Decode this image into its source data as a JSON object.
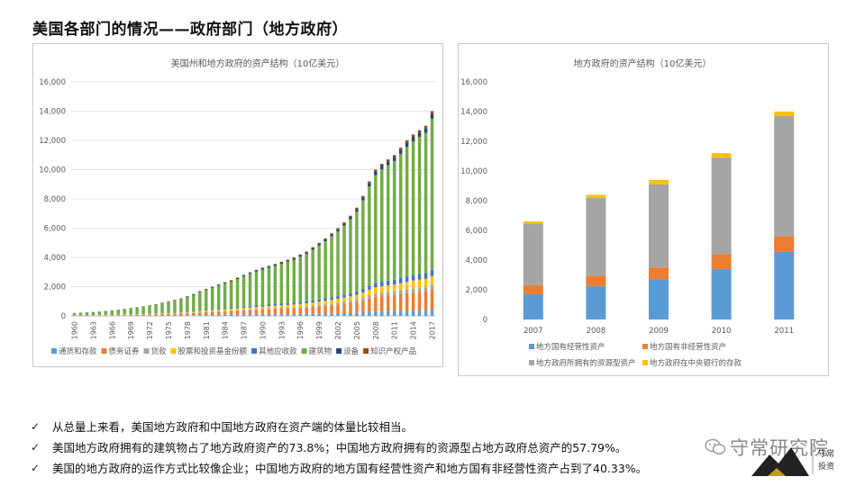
{
  "page": {
    "title": "美国各部门的情况——政府部门（地方政府）"
  },
  "bullets": [
    {
      "check": "✓",
      "text": "从总量上来看，美国地方政府和中国地方政府在资产端的体量比较相当。"
    },
    {
      "check": "✓",
      "text": "美国地方政府拥有的建筑物占了地方政府资产的73.8%；中国地方政府拥有的资源型占地方政府总资产的57.79%。"
    },
    {
      "check": "✓",
      "text": "美国的地方政府的运作方式比较像企业；中国地方政府的地方国有经营性资产和地方国有非经营性资产占到了40.33%。"
    }
  ],
  "watermark": {
    "text": "守常研究院",
    "logo_text": "守常投资"
  },
  "chart_data": [
    {
      "type": "bar",
      "stacked": true,
      "title": "美国州和地方政府的资产结构（10亿美元）",
      "ylim": [
        0,
        16000
      ],
      "yticks": [
        0,
        2000,
        4000,
        6000,
        8000,
        10000,
        12000,
        14000,
        16000
      ],
      "ytick_labels": [
        "0",
        "2,000",
        "4,000",
        "6,000",
        "8,000",
        "10,000",
        "12,000",
        "14,000",
        "16,000"
      ],
      "x_start": 1960,
      "x_end": 2017,
      "xtick_labels": [
        "1960",
        "1963",
        "1966",
        "1969",
        "1972",
        "1975",
        "1978",
        "1981",
        "1984",
        "1987",
        "1990",
        "1993",
        "1996",
        "1999",
        "2002",
        "2005",
        "2008",
        "2011",
        "2014",
        "2017"
      ],
      "totals": [
        200,
        225,
        250,
        275,
        300,
        340,
        380,
        420,
        480,
        540,
        600,
        660,
        730,
        800,
        900,
        1000,
        1100,
        1200,
        1340,
        1500,
        1700,
        1850,
        2000,
        2150,
        2300,
        2450,
        2620,
        2800,
        2980,
        3150,
        3300,
        3420,
        3550,
        3700,
        3850,
        4000,
        4200,
        4400,
        4700,
        5000,
        5300,
        5650,
        6000,
        6400,
        6850,
        7400,
        8200,
        9200,
        10000,
        10400,
        10700,
        11000,
        11500,
        12000,
        12400,
        12700,
        13000,
        14000
      ],
      "shares": [
        {
          "name": "通货和存款",
          "color": "#5b9bd5",
          "share": 0.03
        },
        {
          "name": "债务证券",
          "color": "#ed7d31",
          "share": 0.1
        },
        {
          "name": "贷款",
          "color": "#a5a5a5",
          "share": 0.02
        },
        {
          "name": "股票和投资基金份额",
          "color": "#ffc000",
          "share": 0.045
        },
        {
          "name": "其他应收款",
          "color": "#4472c4",
          "share": 0.03
        },
        {
          "name": "建筑物",
          "color": "#70ad47",
          "share": 0.738
        },
        {
          "name": "设备",
          "color": "#264478",
          "share": 0.025
        },
        {
          "name": "知识产权产品",
          "color": "#9e480e",
          "share": 0.012
        }
      ],
      "legend": [
        "通货和存款",
        "债务证券",
        "贷款",
        "股票和投资基金份额",
        "其他应收款",
        "建筑物",
        "设备",
        "知识产权产品"
      ],
      "legend_position": "bottom"
    },
    {
      "type": "bar",
      "stacked": true,
      "title": "地方政府的资产结构（10亿美元）",
      "ylim": [
        0,
        16000
      ],
      "yticks": [
        0,
        2000,
        4000,
        6000,
        8000,
        10000,
        12000,
        14000,
        16000
      ],
      "ytick_labels": [
        "0",
        "2,000",
        "4,000",
        "6,000",
        "8,000",
        "10,000",
        "12,000",
        "14,000",
        "16,000"
      ],
      "categories": [
        "2007",
        "2008",
        "2009",
        "2010",
        "2011"
      ],
      "series": [
        {
          "name": "地方国有经营性资产",
          "color": "#5b9bd5",
          "values": [
            1700,
            2250,
            2700,
            3400,
            4550
          ]
        },
        {
          "name": "地方国有非经营性资产",
          "color": "#ed7d31",
          "values": [
            600,
            700,
            800,
            1000,
            1050
          ]
        },
        {
          "name": "地方政府所拥有的资源型资产",
          "color": "#a5a5a5",
          "values": [
            4150,
            5250,
            5600,
            6500,
            8100
          ]
        },
        {
          "name": "地方政府在中央银行的存款",
          "color": "#ffc000",
          "values": [
            150,
            200,
            300,
            300,
            300
          ]
        }
      ],
      "legend": [
        "地方国有经营性资产",
        "地方国有非经营性资产",
        "地方政府所拥有的资源型资产",
        "地方政府在中央银行的存款"
      ],
      "legend_position": "bottom"
    }
  ]
}
